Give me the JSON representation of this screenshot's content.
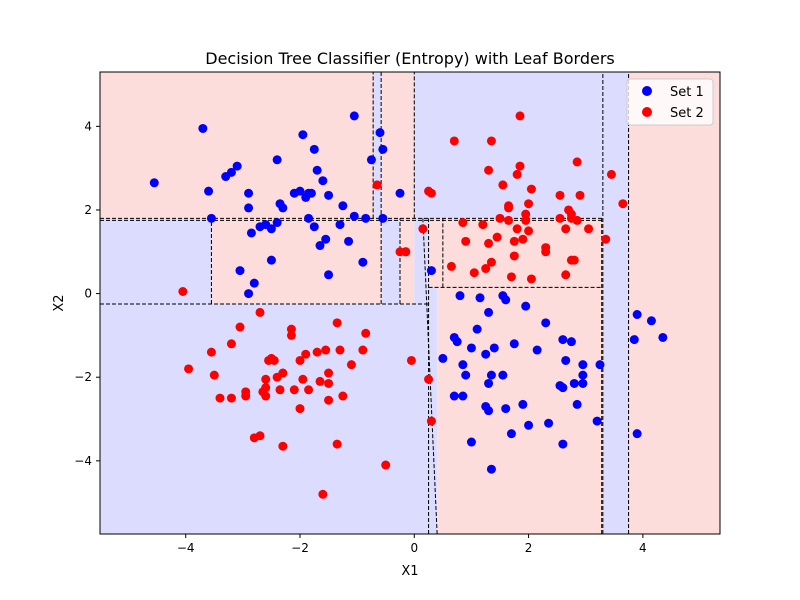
{
  "chart_data": {
    "type": "scatter",
    "title": "Decision Tree Classifier (Entropy) with Leaf Borders",
    "xlabel": "X1",
    "ylabel": "X2",
    "xlim": [
      -5.5,
      5.35
    ],
    "ylim": [
      -5.75,
      5.3
    ],
    "xticks": [
      -4,
      -2,
      0,
      2,
      4
    ],
    "yticks": [
      -4,
      -2,
      0,
      2,
      4
    ],
    "tick_labels": {
      "x": [
        "−4",
        "−2",
        "0",
        "2",
        "4"
      ],
      "y": [
        "−4",
        "−2",
        "0",
        "2",
        "4"
      ]
    },
    "grid": false,
    "legend_position": "top-right",
    "region_colors": {
      "Set 1": "#dcdcff",
      "Set 2": "#fddcdc"
    },
    "leaves": [
      {
        "x": [
          -5.5,
          -0.72
        ],
        "y": [
          1.8,
          5.3
        ],
        "class": "Set 2"
      },
      {
        "x": [
          -0.72,
          -0.58
        ],
        "y": [
          1.8,
          5.3
        ],
        "class": "Set 1"
      },
      {
        "x": [
          -0.58,
          0.0
        ],
        "y": [
          1.8,
          5.3
        ],
        "class": "Set 2"
      },
      {
        "x": [
          0.0,
          3.3
        ],
        "y": [
          1.8,
          5.3
        ],
        "class": "Set 1"
      },
      {
        "x": [
          3.3,
          3.75
        ],
        "y": [
          -5.75,
          5.3
        ],
        "class": "Set 1"
      },
      {
        "x": [
          3.75,
          5.35
        ],
        "y": [
          -5.75,
          5.3
        ],
        "class": "Set 2"
      },
      {
        "x": [
          -5.5,
          -3.55
        ],
        "y": [
          -0.25,
          1.8
        ],
        "class": "Set 1"
      },
      {
        "x": [
          -3.55,
          -0.58
        ],
        "y": [
          -0.25,
          1.8
        ],
        "class": "Set 2"
      },
      {
        "x": [
          -0.58,
          -0.25
        ],
        "y": [
          -0.25,
          1.8
        ],
        "class": "Set 1"
      },
      {
        "x": [
          -0.25,
          0.0
        ],
        "y": [
          -0.25,
          1.8
        ],
        "class": "Set 2"
      },
      {
        "x": [
          0.0,
          0.25
        ],
        "y": [
          -0.25,
          1.8
        ],
        "class": "Set 1"
      },
      {
        "x": [
          0.25,
          0.5
        ],
        "y": [
          0.15,
          1.8
        ],
        "class": "Set 2"
      },
      {
        "x": [
          0.5,
          3.3
        ],
        "y": [
          0.15,
          1.8
        ],
        "class": "Set 2"
      },
      {
        "x": [
          -5.5,
          0.25
        ],
        "y": [
          -5.75,
          -0.25
        ],
        "class": "Set 1"
      },
      {
        "x": [
          0.25,
          0.4
        ],
        "y": [
          -5.75,
          0.15
        ],
        "class": "Set 1"
      },
      {
        "x": [
          0.4,
          3.3
        ],
        "y": [
          -5.75,
          0.15
        ],
        "class": "Set 2"
      }
    ],
    "border_segments": [
      [
        -5.5,
        1.75,
        3.3,
        1.75
      ],
      [
        -5.5,
        1.8,
        3.3,
        1.8
      ],
      [
        -5.5,
        -0.25,
        0.25,
        -0.25
      ],
      [
        0.25,
        0.15,
        3.3,
        0.15
      ],
      [
        -0.72,
        1.8,
        -0.72,
        5.3
      ],
      [
        -0.58,
        -0.25,
        -0.58,
        5.3
      ],
      [
        0.0,
        1.8,
        0.0,
        5.3
      ],
      [
        -3.55,
        -0.25,
        -3.55,
        1.8
      ],
      [
        -0.25,
        -0.25,
        -0.25,
        1.8
      ],
      [
        0.25,
        -5.75,
        0.25,
        1.8
      ],
      [
        0.4,
        -5.75,
        0.15,
        1.8
      ],
      [
        0.5,
        0.15,
        0.5,
        1.8
      ],
      [
        3.3,
        -5.75,
        3.3,
        5.3
      ],
      [
        3.28,
        -5.75,
        3.28,
        1.8
      ],
      [
        3.75,
        -5.75,
        3.75,
        5.3
      ]
    ],
    "series": [
      {
        "name": "Set 1",
        "color": "#0000ff",
        "points": [
          [
            -4.55,
            2.65
          ],
          [
            -3.7,
            3.95
          ],
          [
            -3.6,
            2.45
          ],
          [
            -3.55,
            1.8
          ],
          [
            -3.3,
            2.8
          ],
          [
            -3.2,
            2.9
          ],
          [
            -3.1,
            3.05
          ],
          [
            -2.9,
            2.4
          ],
          [
            -2.9,
            2.05
          ],
          [
            -2.85,
            1.45
          ],
          [
            -2.9,
            0.0
          ],
          [
            -2.8,
            0.25
          ],
          [
            -3.05,
            0.55
          ],
          [
            -2.7,
            1.6
          ],
          [
            -2.6,
            1.65
          ],
          [
            -2.5,
            1.55
          ],
          [
            -2.5,
            0.8
          ],
          [
            -2.4,
            1.7
          ],
          [
            -2.4,
            3.2
          ],
          [
            -2.35,
            2.15
          ],
          [
            -2.3,
            2.05
          ],
          [
            -2.1,
            2.4
          ],
          [
            -2.0,
            2.45
          ],
          [
            -1.95,
            3.8
          ],
          [
            -1.9,
            2.3
          ],
          [
            -1.85,
            2.4
          ],
          [
            -1.8,
            2.4
          ],
          [
            -1.75,
            3.45
          ],
          [
            -1.7,
            2.95
          ],
          [
            -1.6,
            2.7
          ],
          [
            -1.5,
            2.35
          ],
          [
            -1.85,
            1.8
          ],
          [
            -1.75,
            1.6
          ],
          [
            -1.65,
            1.15
          ],
          [
            -1.55,
            1.3
          ],
          [
            -1.5,
            0.45
          ],
          [
            -1.25,
            2.1
          ],
          [
            -1.3,
            1.65
          ],
          [
            -1.15,
            1.25
          ],
          [
            -1.05,
            1.85
          ],
          [
            -1.05,
            4.25
          ],
          [
            -0.85,
            1.8
          ],
          [
            -0.9,
            0.75
          ],
          [
            -0.75,
            3.2
          ],
          [
            -0.6,
            3.85
          ],
          [
            -0.55,
            3.45
          ],
          [
            -0.55,
            1.8
          ],
          [
            -0.25,
            2.4
          ],
          [
            -0.15,
            1.0
          ],
          [
            0.3,
            0.55
          ],
          [
            0.5,
            -1.55
          ],
          [
            0.7,
            -1.05
          ],
          [
            0.75,
            -1.15
          ],
          [
            0.8,
            -0.05
          ],
          [
            0.85,
            -1.7
          ],
          [
            0.7,
            -2.45
          ],
          [
            0.85,
            -2.45
          ],
          [
            0.9,
            -1.95
          ],
          [
            1.0,
            -1.3
          ],
          [
            1.0,
            -3.55
          ],
          [
            1.1,
            -0.85
          ],
          [
            1.15,
            -0.1
          ],
          [
            1.25,
            -1.45
          ],
          [
            1.3,
            -0.45
          ],
          [
            1.3,
            -2.15
          ],
          [
            1.35,
            -1.95
          ],
          [
            1.25,
            -2.7
          ],
          [
            1.3,
            -2.8
          ],
          [
            1.4,
            -1.3
          ],
          [
            1.35,
            -4.2
          ],
          [
            1.55,
            -0.05
          ],
          [
            1.6,
            -0.15
          ],
          [
            1.55,
            -1.95
          ],
          [
            1.6,
            -2.75
          ],
          [
            1.7,
            -3.35
          ],
          [
            1.75,
            -1.2
          ],
          [
            1.9,
            -2.65
          ],
          [
            1.95,
            -0.3
          ],
          [
            2.0,
            -3.15
          ],
          [
            2.15,
            -1.35
          ],
          [
            2.3,
            -0.7
          ],
          [
            2.35,
            -3.1
          ],
          [
            2.55,
            -2.2
          ],
          [
            2.6,
            -2.25
          ],
          [
            2.6,
            -1.1
          ],
          [
            2.65,
            -1.6
          ],
          [
            2.6,
            -3.6
          ],
          [
            2.75,
            -1.15
          ],
          [
            2.8,
            -2.15
          ],
          [
            2.85,
            -2.65
          ],
          [
            2.95,
            -1.7
          ],
          [
            2.95,
            -1.95
          ],
          [
            2.95,
            -2.15
          ],
          [
            3.2,
            -3.05
          ],
          [
            3.25,
            -1.7
          ],
          [
            3.9,
            -0.5
          ],
          [
            3.85,
            -1.1
          ],
          [
            4.15,
            -0.65
          ],
          [
            4.35,
            -1.05
          ],
          [
            3.9,
            -3.35
          ]
        ]
      },
      {
        "name": "Set 2",
        "color": "#ff0000",
        "points": [
          [
            -4.05,
            0.05
          ],
          [
            -3.95,
            -1.8
          ],
          [
            -3.55,
            -1.4
          ],
          [
            -3.5,
            -1.95
          ],
          [
            -3.4,
            -2.5
          ],
          [
            -3.2,
            -2.5
          ],
          [
            -3.2,
            -1.2
          ],
          [
            -3.05,
            -0.8
          ],
          [
            -2.95,
            -2.35
          ],
          [
            -2.95,
            -2.45
          ],
          [
            -2.8,
            -3.45
          ],
          [
            -2.7,
            -3.4
          ],
          [
            -2.7,
            -0.45
          ],
          [
            -2.65,
            -2.35
          ],
          [
            -2.6,
            -2.05
          ],
          [
            -2.6,
            -2.25
          ],
          [
            -2.6,
            -2.45
          ],
          [
            -2.55,
            -1.6
          ],
          [
            -2.5,
            -1.55
          ],
          [
            -2.45,
            -1.6
          ],
          [
            -2.4,
            -2.0
          ],
          [
            -2.35,
            -2.3
          ],
          [
            -2.3,
            -1.9
          ],
          [
            -2.3,
            -3.65
          ],
          [
            -2.15,
            -0.85
          ],
          [
            -2.15,
            -1.0
          ],
          [
            -2.1,
            -2.3
          ],
          [
            -2.0,
            -1.6
          ],
          [
            -2.0,
            -2.75
          ],
          [
            -1.95,
            -2.05
          ],
          [
            -1.9,
            -1.45
          ],
          [
            -1.85,
            -2.3
          ],
          [
            -1.7,
            -1.4
          ],
          [
            -1.65,
            -2.1
          ],
          [
            -1.6,
            -4.8
          ],
          [
            -1.55,
            -1.35
          ],
          [
            -1.5,
            -2.15
          ],
          [
            -1.5,
            -2.55
          ],
          [
            -1.5,
            -1.9
          ],
          [
            -1.35,
            -0.7
          ],
          [
            -1.35,
            -3.6
          ],
          [
            -1.3,
            -1.35
          ],
          [
            -1.25,
            -2.45
          ],
          [
            -1.1,
            -1.7
          ],
          [
            -0.9,
            -1.35
          ],
          [
            -0.85,
            -0.95
          ],
          [
            -0.5,
            -4.1
          ],
          [
            -0.05,
            -1.6
          ],
          [
            -0.65,
            2.6
          ],
          [
            -0.25,
            1.0
          ],
          [
            -0.15,
            1.0
          ],
          [
            0.15,
            1.55
          ],
          [
            0.25,
            2.45
          ],
          [
            0.3,
            2.4
          ],
          [
            0.25,
            -2.05
          ],
          [
            0.3,
            -3.05
          ],
          [
            0.65,
            0.65
          ],
          [
            0.7,
            3.65
          ],
          [
            0.85,
            1.7
          ],
          [
            0.9,
            1.25
          ],
          [
            1.05,
            0.5
          ],
          [
            1.2,
            1.65
          ],
          [
            1.25,
            0.6
          ],
          [
            1.3,
            1.2
          ],
          [
            1.3,
            2.95
          ],
          [
            1.35,
            3.65
          ],
          [
            1.35,
            0.75
          ],
          [
            1.45,
            1.35
          ],
          [
            1.5,
            1.8
          ],
          [
            1.55,
            2.6
          ],
          [
            1.65,
            2.05
          ],
          [
            1.65,
            2.1
          ],
          [
            1.65,
            1.75
          ],
          [
            1.7,
            0.4
          ],
          [
            1.75,
            1.25
          ],
          [
            1.75,
            0.9
          ],
          [
            1.8,
            2.85
          ],
          [
            1.8,
            1.55
          ],
          [
            1.85,
            4.25
          ],
          [
            1.85,
            3.05
          ],
          [
            1.9,
            1.3
          ],
          [
            1.95,
            1.9
          ],
          [
            1.95,
            1.75
          ],
          [
            2.0,
            2.15
          ],
          [
            2.0,
            1.5
          ],
          [
            2.05,
            2.5
          ],
          [
            2.05,
            0.35
          ],
          [
            2.3,
            1.1
          ],
          [
            2.3,
            1.0
          ],
          [
            2.55,
            2.35
          ],
          [
            2.55,
            1.8
          ],
          [
            2.65,
            0.45
          ],
          [
            2.65,
            1.55
          ],
          [
            2.7,
            2.0
          ],
          [
            2.75,
            1.9
          ],
          [
            2.75,
            1.8
          ],
          [
            2.75,
            0.8
          ],
          [
            2.8,
            0.8
          ],
          [
            2.85,
            1.75
          ],
          [
            2.85,
            3.15
          ],
          [
            2.9,
            2.35
          ],
          [
            3.05,
            1.55
          ],
          [
            3.35,
            1.3
          ],
          [
            3.45,
            2.85
          ],
          [
            3.65,
            2.15
          ]
        ]
      }
    ]
  }
}
